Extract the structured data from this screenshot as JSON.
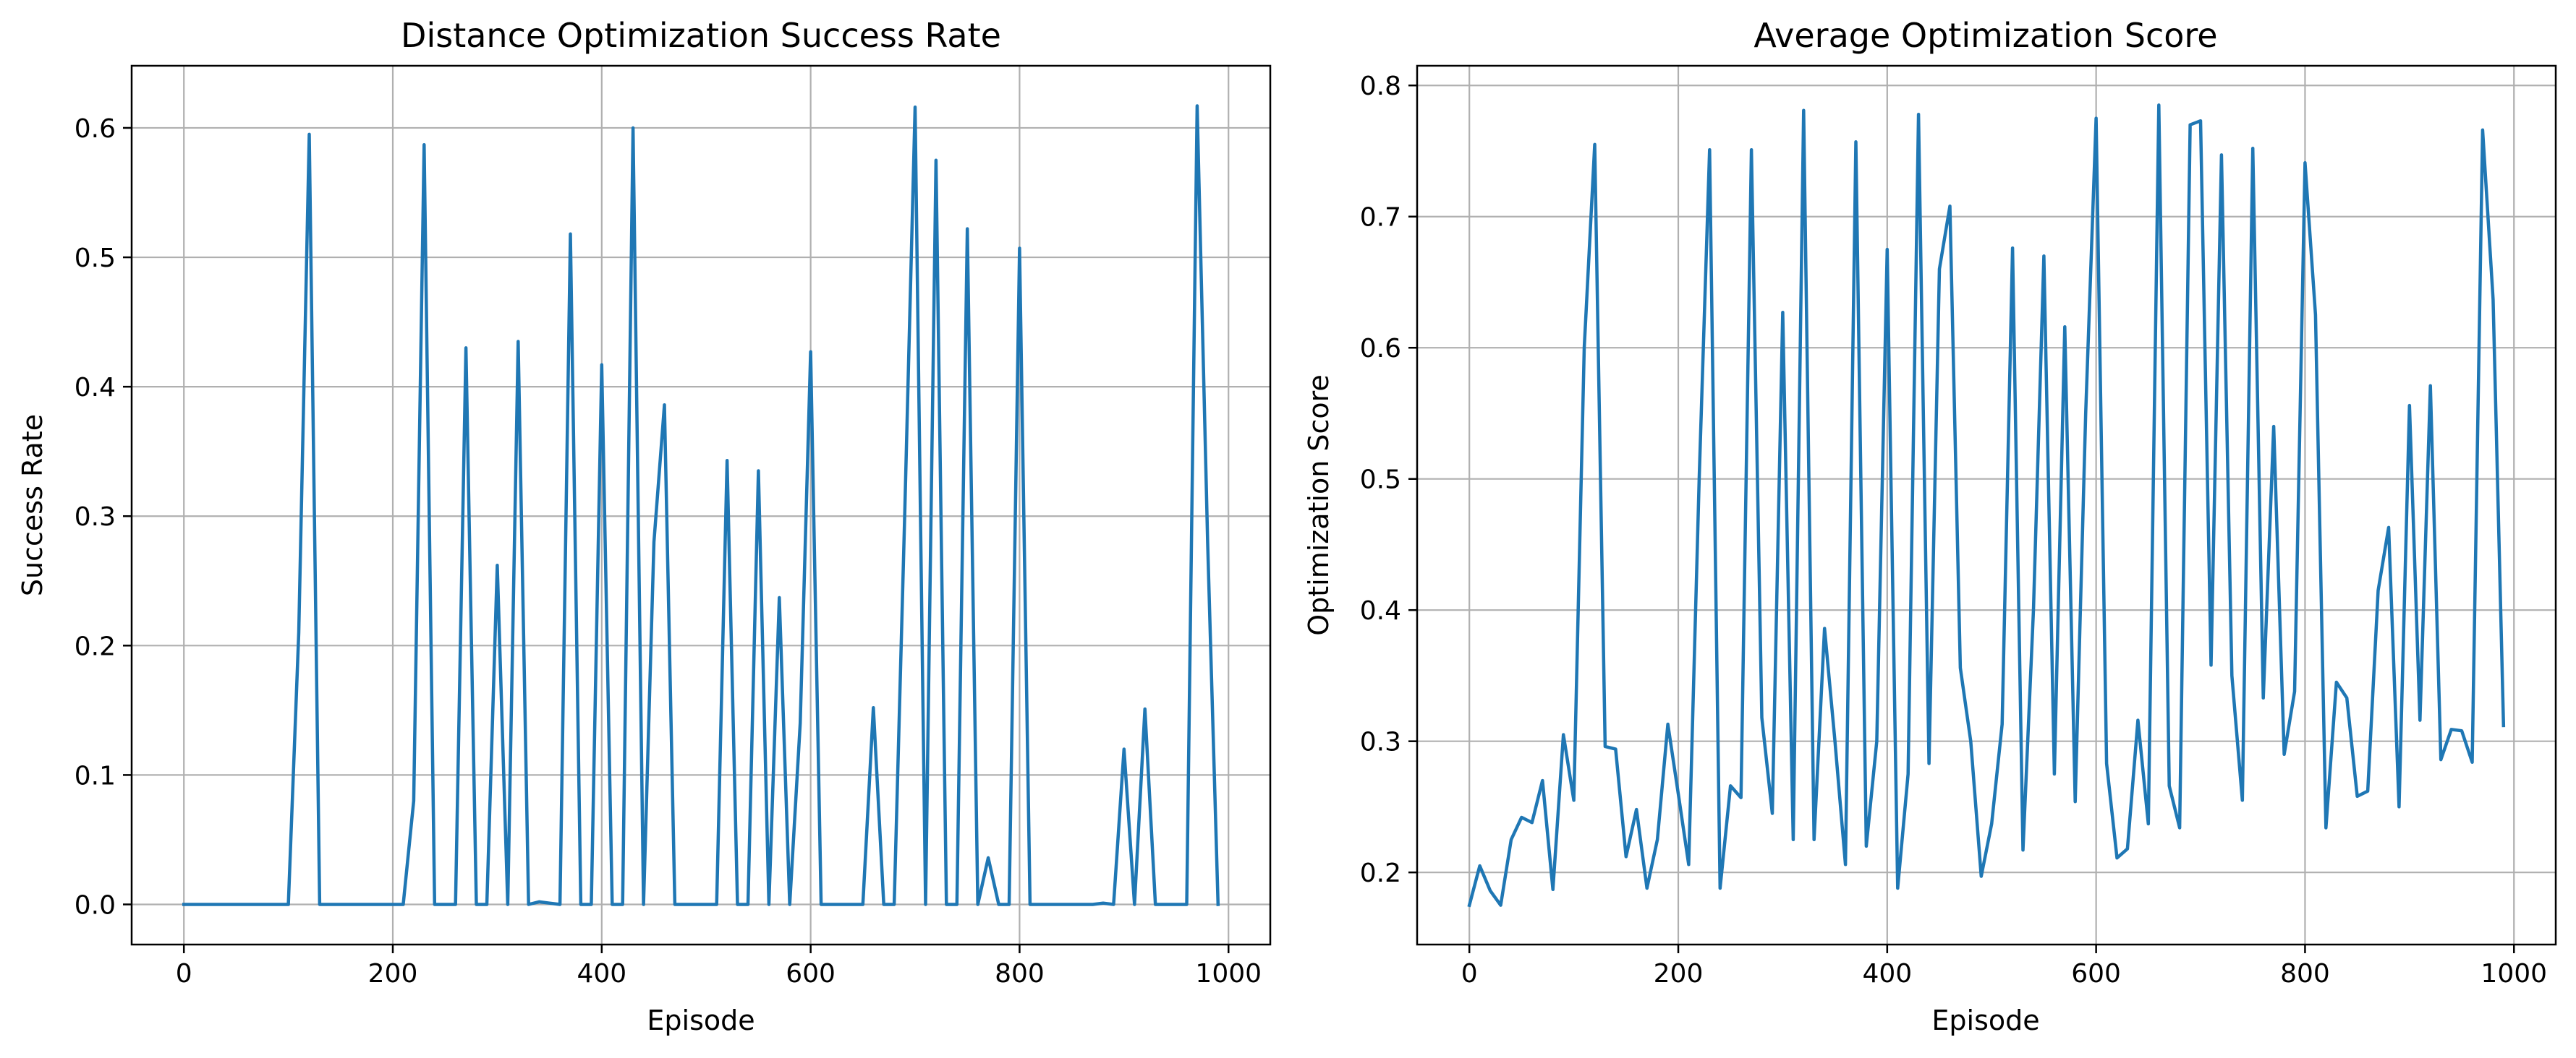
{
  "colors": {
    "line": "#1f77b4",
    "grid": "#b0b0b0",
    "axis": "#000000",
    "background": "#ffffff"
  },
  "chart_data": [
    {
      "type": "line",
      "title": "Distance Optimization Success Rate",
      "xlabel": "Episode",
      "ylabel": "Success Rate",
      "xlim": [
        -50,
        1040
      ],
      "ylim": [
        -0.031,
        0.648
      ],
      "xticks": [
        0,
        200,
        400,
        600,
        800,
        1000
      ],
      "xtick_labels": [
        "0",
        "200",
        "400",
        "600",
        "800",
        "1000"
      ],
      "yticks": [
        0.0,
        0.1,
        0.2,
        0.3,
        0.4,
        0.5,
        0.6
      ],
      "ytick_labels": [
        "0.0",
        "0.1",
        "0.2",
        "0.3",
        "0.4",
        "0.5",
        "0.6"
      ],
      "grid": true,
      "legend": "none",
      "series": [
        {
          "x": [
            0,
            10,
            20,
            30,
            40,
            50,
            60,
            70,
            80,
            90,
            100,
            110,
            120,
            130,
            140,
            150,
            160,
            170,
            180,
            190,
            200,
            210,
            220,
            230,
            240,
            250,
            260,
            270,
            280,
            290,
            300,
            310,
            320,
            330,
            340,
            350,
            360,
            370,
            380,
            390,
            400,
            410,
            420,
            430,
            440,
            450,
            460,
            470,
            480,
            490,
            500,
            510,
            520,
            530,
            540,
            550,
            560,
            570,
            580,
            590,
            600,
            610,
            620,
            630,
            640,
            650,
            660,
            670,
            680,
            690,
            700,
            710,
            720,
            730,
            740,
            750,
            760,
            770,
            780,
            790,
            800,
            810,
            820,
            830,
            840,
            850,
            860,
            870,
            880,
            890,
            900,
            910,
            920,
            930,
            940,
            950,
            960,
            970,
            980,
            990
          ],
          "values": [
            0,
            0,
            0,
            0,
            0,
            0,
            0,
            0,
            0,
            0,
            0,
            0.21,
            0.595,
            0,
            0,
            0,
            0,
            0,
            0,
            0,
            0,
            0,
            0.08,
            0.587,
            0,
            0,
            0,
            0.43,
            0,
            0,
            0.262,
            0,
            0.435,
            0,
            0.002,
            0.001,
            0,
            0.518,
            0,
            0,
            0.417,
            0,
            0,
            0.6,
            0,
            0.28,
            0.386,
            0,
            0,
            0,
            0,
            0,
            0.343,
            0,
            0,
            0.335,
            0,
            0.237,
            0,
            0.14,
            0.427,
            0,
            0,
            0,
            0,
            0,
            0.152,
            0,
            0,
            0.3,
            0.616,
            0,
            0.575,
            0,
            0,
            0.522,
            0,
            0.036,
            0,
            0,
            0.507,
            0,
            0,
            0,
            0,
            0,
            0,
            0,
            0.001,
            0,
            0.12,
            0,
            0.151,
            0,
            0,
            0,
            0,
            0.617,
            0.28,
            0
          ]
        }
      ]
    },
    {
      "type": "line",
      "title": "Average Optimization Score",
      "xlabel": "Episode",
      "ylabel": "Optimization Score",
      "xlim": [
        -50,
        1040
      ],
      "ylim": [
        0.145,
        0.815
      ],
      "xticks": [
        0,
        200,
        400,
        600,
        800,
        1000
      ],
      "xtick_labels": [
        "0",
        "200",
        "400",
        "600",
        "800",
        "1000"
      ],
      "yticks": [
        0.2,
        0.3,
        0.4,
        0.5,
        0.6,
        0.7,
        0.8
      ],
      "ytick_labels": [
        "0.2",
        "0.3",
        "0.4",
        "0.5",
        "0.6",
        "0.7",
        "0.8"
      ],
      "grid": true,
      "legend": "none",
      "series": [
        {
          "x": [
            0,
            10,
            20,
            30,
            40,
            50,
            60,
            70,
            80,
            90,
            100,
            110,
            120,
            130,
            140,
            150,
            160,
            170,
            180,
            190,
            200,
            210,
            220,
            230,
            240,
            250,
            260,
            270,
            280,
            290,
            300,
            310,
            320,
            330,
            340,
            350,
            360,
            370,
            380,
            390,
            400,
            410,
            420,
            430,
            440,
            450,
            460,
            470,
            480,
            490,
            500,
            510,
            520,
            530,
            540,
            550,
            560,
            570,
            580,
            590,
            600,
            610,
            620,
            630,
            640,
            650,
            660,
            670,
            680,
            690,
            700,
            710,
            720,
            730,
            740,
            750,
            760,
            770,
            780,
            790,
            800,
            810,
            820,
            830,
            840,
            850,
            860,
            870,
            880,
            890,
            900,
            910,
            920,
            930,
            940,
            950,
            960,
            970,
            980,
            990
          ],
          "values": [
            0.175,
            0.205,
            0.186,
            0.175,
            0.225,
            0.242,
            0.238,
            0.27,
            0.187,
            0.305,
            0.255,
            0.6,
            0.755,
            0.296,
            0.294,
            0.212,
            0.248,
            0.188,
            0.225,
            0.313,
            0.26,
            0.206,
            0.5,
            0.751,
            0.188,
            0.266,
            0.257,
            0.751,
            0.318,
            0.245,
            0.627,
            0.225,
            0.781,
            0.225,
            0.386,
            0.3,
            0.206,
            0.757,
            0.22,
            0.3,
            0.675,
            0.188,
            0.275,
            0.778,
            0.283,
            0.66,
            0.708,
            0.356,
            0.3,
            0.197,
            0.237,
            0.313,
            0.676,
            0.217,
            0.4,
            0.67,
            0.275,
            0.616,
            0.254,
            0.55,
            0.775,
            0.283,
            0.211,
            0.218,
            0.316,
            0.237,
            0.785,
            0.266,
            0.234,
            0.77,
            0.773,
            0.358,
            0.747,
            0.35,
            0.255,
            0.752,
            0.333,
            0.54,
            0.29,
            0.338,
            0.741,
            0.625,
            0.234,
            0.345,
            0.333,
            0.258,
            0.262,
            0.415,
            0.463,
            0.25,
            0.556,
            0.316,
            0.571,
            0.286,
            0.309,
            0.308,
            0.284,
            0.766,
            0.637,
            0.312
          ]
        }
      ]
    }
  ]
}
